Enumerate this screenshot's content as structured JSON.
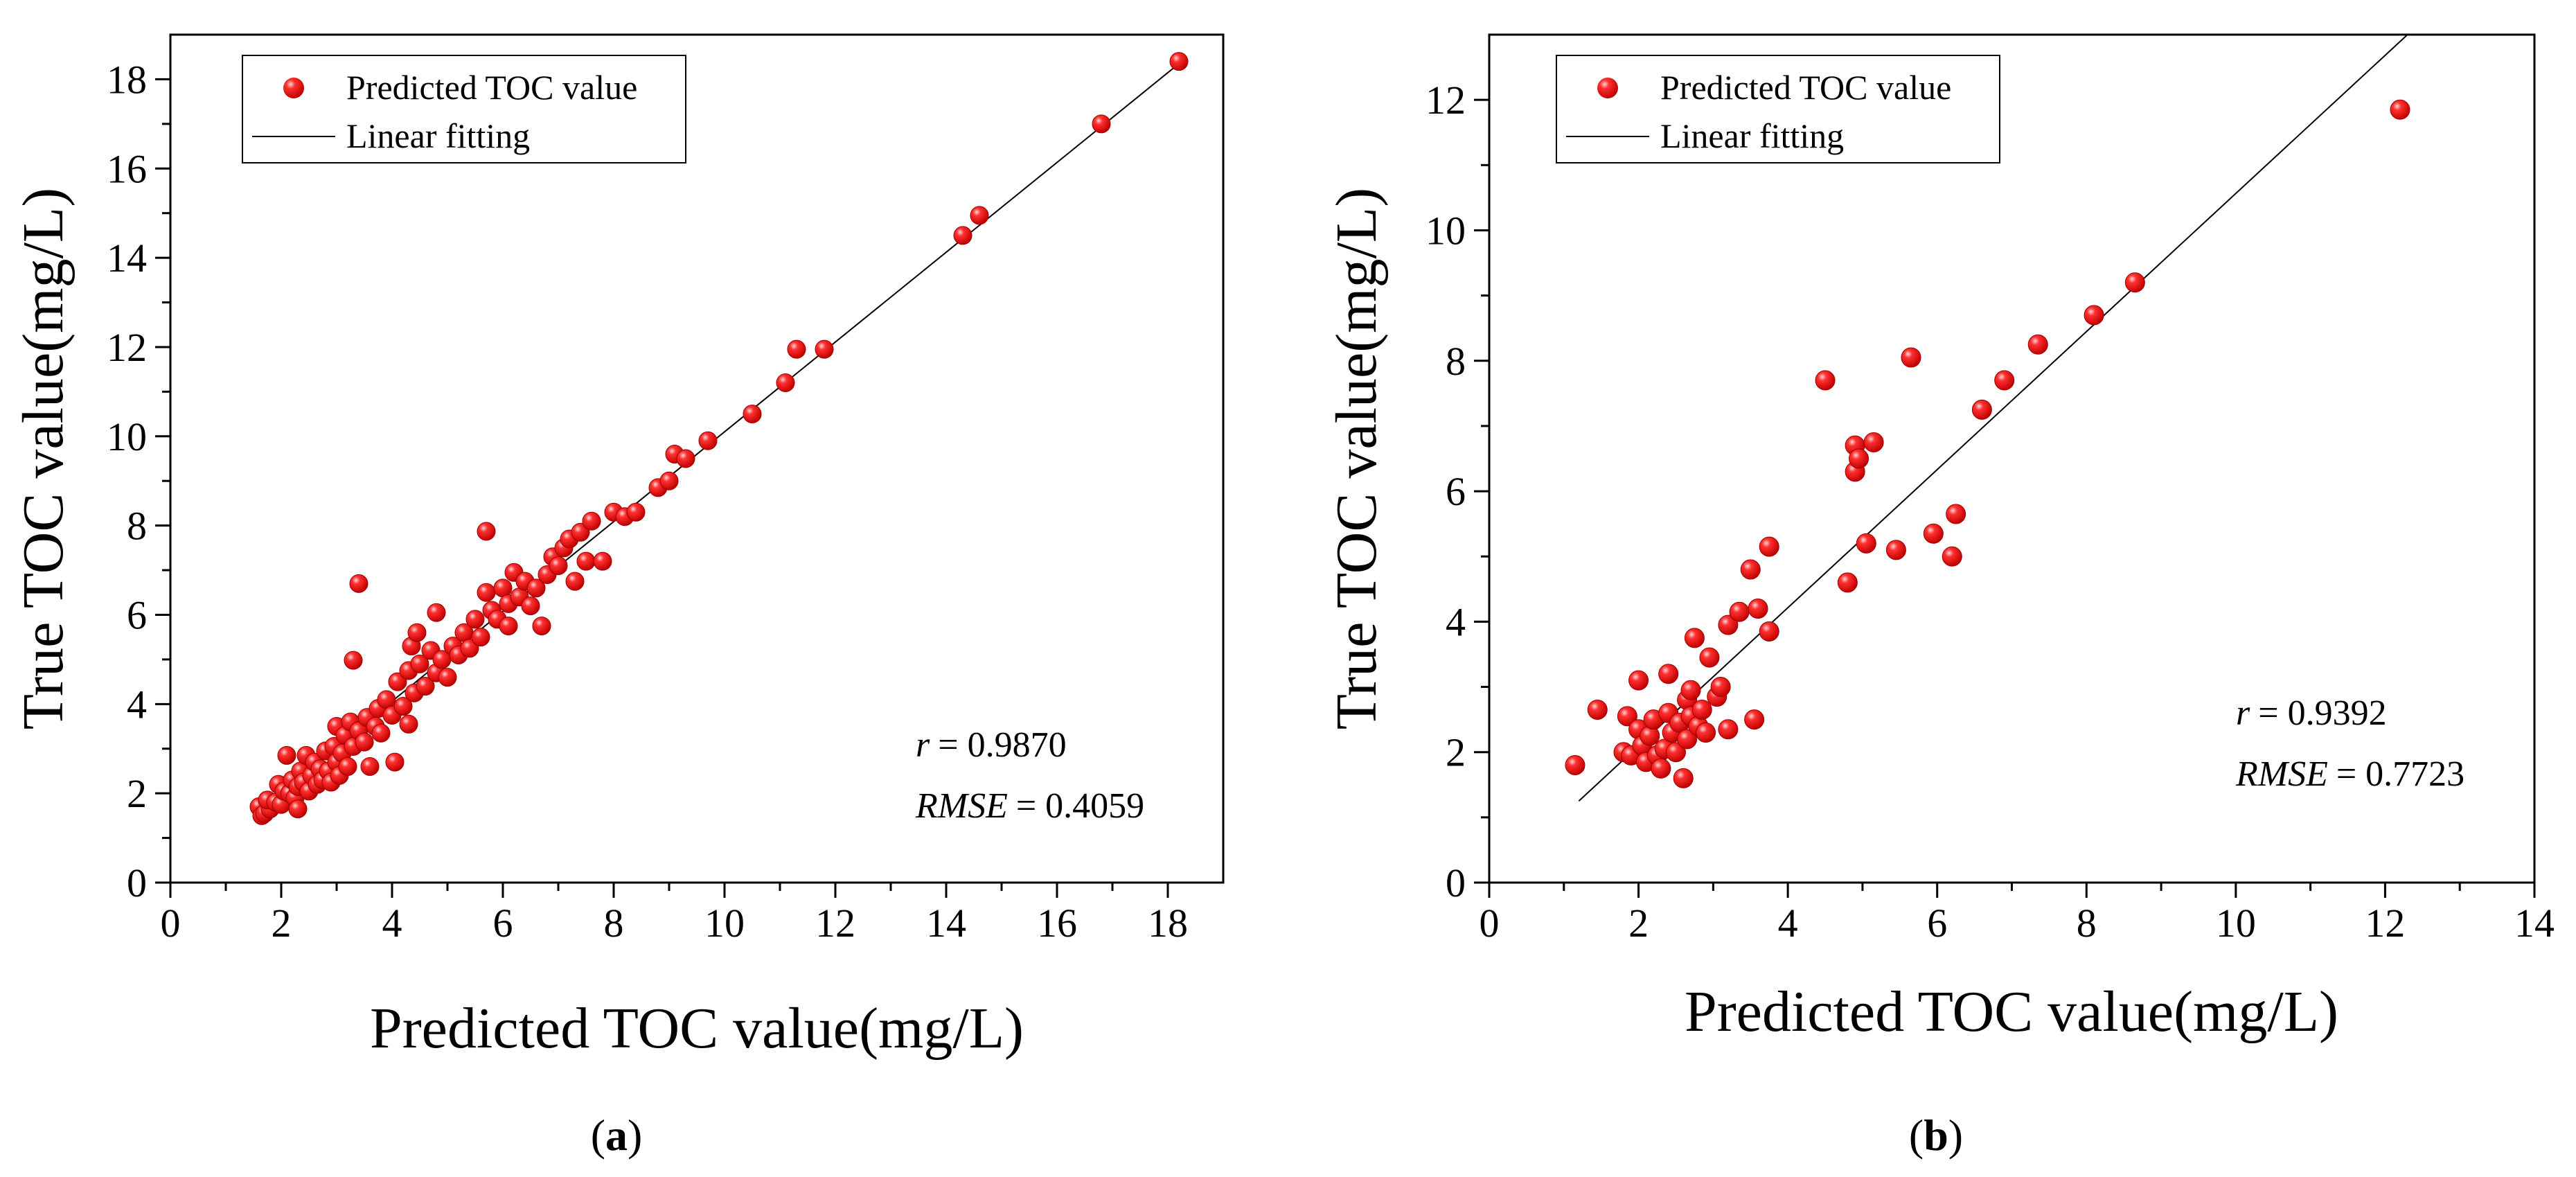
{
  "chart_data": [
    {
      "type": "scatter",
      "panel_label": "a",
      "xlabel": "Predicted TOC value(mg/L)",
      "ylabel": "True TOC value(mg/L)",
      "xlim": [
        0,
        19
      ],
      "ylim": [
        0,
        19
      ],
      "xticks": [
        0,
        2,
        4,
        6,
        8,
        10,
        12,
        14,
        16,
        18
      ],
      "yticks": [
        0,
        2,
        4,
        6,
        8,
        10,
        12,
        14,
        16,
        18
      ],
      "legend_position": "top-left",
      "legend": {
        "points_label": "Predicted TOC value",
        "line_label": "Linear fitting"
      },
      "stats": {
        "r_symbol": "r",
        "r_value": "= 0.9870",
        "rmse_symbol": "RMSE",
        "rmse_value": "= 0.4059"
      },
      "fit_line": {
        "x": [
          1.7,
          18.3
        ],
        "y": [
          1.75,
          18.45
        ]
      },
      "series": [
        {
          "name": "Predicted TOC value",
          "color": "#ee1111",
          "points": [
            [
              1.6,
              1.7
            ],
            [
              1.65,
              1.5
            ],
            [
              1.7,
              1.55
            ],
            [
              1.8,
              1.65
            ],
            [
              1.75,
              1.85
            ],
            [
              1.9,
              1.8
            ],
            [
              1.95,
              2.2
            ],
            [
              2.0,
              1.75
            ],
            [
              2.05,
              2.05
            ],
            [
              2.1,
              2.85
            ],
            [
              2.15,
              2.0
            ],
            [
              2.2,
              2.3
            ],
            [
              2.25,
              1.9
            ],
            [
              2.3,
              2.15
            ],
            [
              2.3,
              1.65
            ],
            [
              2.35,
              2.5
            ],
            [
              2.4,
              2.25
            ],
            [
              2.45,
              2.85
            ],
            [
              2.5,
              2.05
            ],
            [
              2.55,
              2.4
            ],
            [
              2.6,
              2.7
            ],
            [
              2.65,
              2.2
            ],
            [
              2.7,
              2.55
            ],
            [
              2.75,
              2.3
            ],
            [
              2.8,
              2.95
            ],
            [
              2.85,
              2.5
            ],
            [
              2.9,
              2.25
            ],
            [
              2.95,
              3.05
            ],
            [
              3.0,
              2.7
            ],
            [
              3.0,
              3.5
            ],
            [
              3.05,
              2.4
            ],
            [
              3.1,
              2.9
            ],
            [
              3.15,
              3.3
            ],
            [
              3.2,
              2.6
            ],
            [
              3.25,
              3.6
            ],
            [
              3.3,
              3.05
            ],
            [
              3.3,
              4.98
            ],
            [
              3.4,
              3.4
            ],
            [
              3.4,
              6.7
            ],
            [
              3.5,
              3.15
            ],
            [
              3.55,
              3.7
            ],
            [
              3.6,
              2.6
            ],
            [
              3.7,
              3.5
            ],
            [
              3.75,
              3.9
            ],
            [
              3.8,
              3.35
            ],
            [
              3.9,
              4.1
            ],
            [
              4.0,
              3.75
            ],
            [
              4.05,
              2.7
            ],
            [
              4.1,
              4.5
            ],
            [
              4.2,
              3.95
            ],
            [
              4.3,
              4.75
            ],
            [
              4.3,
              3.55
            ],
            [
              4.35,
              5.3
            ],
            [
              4.4,
              4.25
            ],
            [
              4.45,
              5.6
            ],
            [
              4.5,
              4.9
            ],
            [
              4.6,
              4.4
            ],
            [
              4.7,
              5.2
            ],
            [
              4.8,
              4.7
            ],
            [
              4.8,
              6.05
            ],
            [
              4.9,
              5.0
            ],
            [
              5.0,
              4.6
            ],
            [
              5.1,
              5.3
            ],
            [
              5.2,
              5.1
            ],
            [
              5.3,
              5.6
            ],
            [
              5.4,
              5.25
            ],
            [
              5.5,
              5.9
            ],
            [
              5.6,
              5.5
            ],
            [
              5.7,
              6.5
            ],
            [
              5.7,
              7.87
            ],
            [
              5.8,
              6.1
            ],
            [
              5.9,
              5.9
            ],
            [
              6.0,
              6.6
            ],
            [
              6.1,
              6.25
            ],
            [
              6.1,
              5.75
            ],
            [
              6.2,
              6.95
            ],
            [
              6.3,
              6.4
            ],
            [
              6.4,
              6.75
            ],
            [
              6.5,
              6.2
            ],
            [
              6.6,
              6.6
            ],
            [
              6.7,
              5.75
            ],
            [
              6.8,
              6.9
            ],
            [
              6.9,
              7.3
            ],
            [
              7.0,
              7.1
            ],
            [
              7.1,
              7.5
            ],
            [
              7.2,
              7.7
            ],
            [
              7.3,
              6.75
            ],
            [
              7.4,
              7.85
            ],
            [
              7.5,
              7.2
            ],
            [
              7.6,
              8.1
            ],
            [
              7.8,
              7.2
            ],
            [
              8.0,
              8.3
            ],
            [
              8.2,
              8.2
            ],
            [
              8.4,
              8.3
            ],
            [
              8.8,
              8.85
            ],
            [
              9.0,
              9.0
            ],
            [
              9.1,
              9.6
            ],
            [
              9.3,
              9.5
            ],
            [
              9.7,
              9.9
            ],
            [
              10.5,
              10.5
            ],
            [
              11.1,
              11.2
            ],
            [
              11.3,
              11.95
            ],
            [
              11.8,
              11.95
            ],
            [
              14.3,
              14.5
            ],
            [
              14.6,
              14.95
            ],
            [
              16.8,
              17.0
            ],
            [
              18.2,
              18.4
            ]
          ]
        }
      ]
    },
    {
      "type": "scatter",
      "panel_label": "b",
      "xlabel": "Predicted TOC value(mg/L)",
      "ylabel": "True TOC value(mg/L)",
      "xlim": [
        0,
        14
      ],
      "ylim": [
        0,
        13
      ],
      "xticks": [
        0,
        2,
        4,
        6,
        8,
        10,
        12,
        14
      ],
      "yticks": [
        0,
        2,
        4,
        6,
        8,
        10,
        12
      ],
      "legend_position": "top-left",
      "legend": {
        "points_label": "Predicted TOC value",
        "line_label": "Linear fitting"
      },
      "stats": {
        "r_symbol": "r",
        "r_value": "= 0.9392",
        "rmse_symbol": "RMSE",
        "rmse_value": "= 0.7723"
      },
      "fit_line": {
        "x": [
          1.2,
          12.3
        ],
        "y": [
          1.25,
          13.0
        ]
      },
      "series": [
        {
          "name": "Predicted TOC value",
          "color": "#ee1111",
          "points": [
            [
              1.15,
              1.8
            ],
            [
              1.45,
              2.65
            ],
            [
              1.8,
              2.0
            ],
            [
              1.85,
              2.55
            ],
            [
              1.9,
              1.95
            ],
            [
              2.0,
              3.1
            ],
            [
              2.0,
              2.35
            ],
            [
              2.05,
              2.1
            ],
            [
              2.1,
              1.85
            ],
            [
              2.15,
              2.25
            ],
            [
              2.2,
              2.5
            ],
            [
              2.25,
              1.95
            ],
            [
              2.3,
              1.75
            ],
            [
              2.35,
              2.05
            ],
            [
              2.4,
              2.6
            ],
            [
              2.4,
              3.2
            ],
            [
              2.45,
              2.3
            ],
            [
              2.5,
              2.0
            ],
            [
              2.55,
              2.45
            ],
            [
              2.6,
              1.6
            ],
            [
              2.65,
              2.2
            ],
            [
              2.65,
              2.8
            ],
            [
              2.7,
              2.55
            ],
            [
              2.7,
              2.95
            ],
            [
              2.75,
              3.75
            ],
            [
              2.8,
              2.4
            ],
            [
              2.85,
              2.65
            ],
            [
              2.9,
              2.3
            ],
            [
              2.95,
              3.45
            ],
            [
              3.05,
              2.85
            ],
            [
              3.1,
              3.0
            ],
            [
              3.2,
              3.95
            ],
            [
              3.2,
              2.35
            ],
            [
              3.35,
              4.15
            ],
            [
              3.5,
              4.8
            ],
            [
              3.55,
              2.5
            ],
            [
              3.6,
              4.2
            ],
            [
              3.75,
              5.15
            ],
            [
              3.75,
              3.85
            ],
            [
              4.5,
              7.7
            ],
            [
              4.8,
              4.6
            ],
            [
              4.9,
              6.7
            ],
            [
              4.9,
              6.3
            ],
            [
              4.95,
              6.5
            ],
            [
              5.05,
              5.2
            ],
            [
              5.15,
              6.75
            ],
            [
              5.45,
              5.1
            ],
            [
              5.65,
              8.05
            ],
            [
              5.95,
              5.35
            ],
            [
              6.2,
              5.0
            ],
            [
              6.25,
              5.65
            ],
            [
              6.6,
              7.25
            ],
            [
              6.9,
              7.7
            ],
            [
              7.35,
              8.25
            ],
            [
              8.1,
              8.7
            ],
            [
              8.65,
              9.2
            ],
            [
              12.2,
              11.85
            ]
          ]
        }
      ]
    }
  ]
}
